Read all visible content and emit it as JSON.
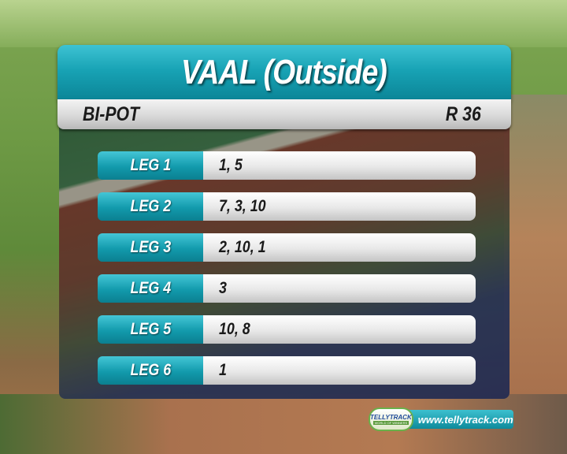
{
  "header": {
    "title": "VAAL (Outside)"
  },
  "subheader": {
    "bet_type": "BI-POT",
    "race": "R 36"
  },
  "legs": [
    {
      "label": "LEG 1",
      "selections": "1, 5"
    },
    {
      "label": "LEG 2",
      "selections": "7, 3, 10"
    },
    {
      "label": "LEG 3",
      "selections": "2, 10, 1"
    },
    {
      "label": "LEG 4",
      "selections": "3"
    },
    {
      "label": "LEG 5",
      "selections": "10, 8"
    },
    {
      "label": "LEG 6",
      "selections": "1"
    }
  ],
  "branding": {
    "logo_name": "TELLYTRACK",
    "logo_tagline": "WORLD OF WINNERS",
    "url": "www.tellytrack.com"
  },
  "colors": {
    "accent": "#18a3b5",
    "bar": "#e8e8e8"
  }
}
